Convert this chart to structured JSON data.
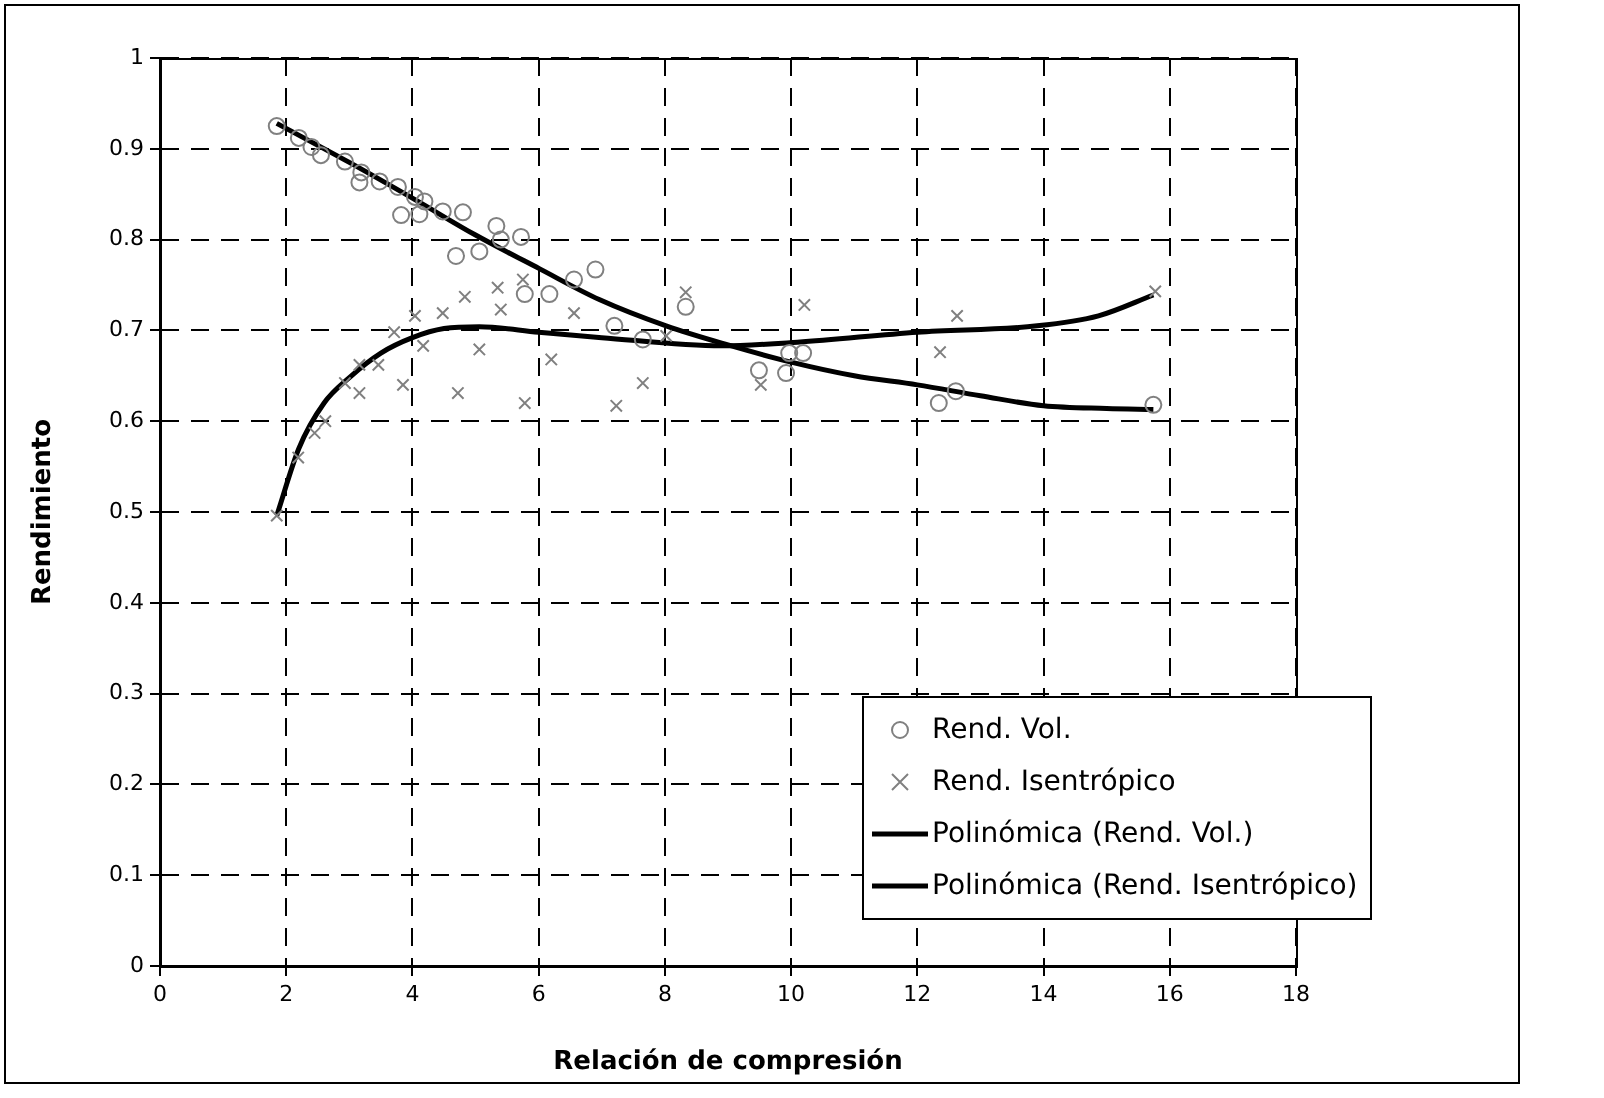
{
  "chart_data": {
    "type": "scatter",
    "xlabel": "Relación de compresión",
    "ylabel": "Rendimiento",
    "xlim": [
      0,
      18
    ],
    "xticks": [
      0,
      2,
      4,
      6,
      8,
      10,
      12,
      14,
      16,
      18
    ],
    "ylim": [
      0,
      1
    ],
    "yticks": [
      0,
      0.1,
      0.2,
      0.3,
      0.4,
      0.5,
      0.6,
      0.7,
      0.8,
      0.9,
      1
    ],
    "grid": true,
    "legend": "bottom right",
    "series": [
      {
        "name": "Rend. Vol.",
        "marker": "circle",
        "color": "#808080",
        "x": [
          1.85,
          2.2,
          2.4,
          2.55,
          2.93,
          3.16,
          3.19,
          3.48,
          3.77,
          4.04,
          4.19,
          3.82,
          4.11,
          4.48,
          4.8,
          4.69,
          5.06,
          5.33,
          5.4,
          5.72,
          5.78,
          6.17,
          6.56,
          6.9,
          7.2,
          7.65,
          8.33,
          9.49,
          9.92,
          9.97,
          10.19,
          12.34,
          12.61,
          15.74
        ],
        "values": [
          0.925,
          0.912,
          0.902,
          0.893,
          0.886,
          0.863,
          0.874,
          0.864,
          0.858,
          0.847,
          0.842,
          0.827,
          0.828,
          0.831,
          0.83,
          0.782,
          0.787,
          0.815,
          0.8,
          0.803,
          0.74,
          0.74,
          0.756,
          0.767,
          0.705,
          0.69,
          0.726,
          0.656,
          0.653,
          0.675,
          0.675,
          0.62,
          0.633,
          0.618
        ]
      },
      {
        "name": "Rend. Isentrópico",
        "marker": "cross",
        "color": "#808080",
        "x": [
          1.85,
          2.19,
          2.45,
          2.62,
          2.93,
          3.16,
          3.16,
          3.46,
          3.71,
          3.85,
          4.04,
          4.17,
          4.48,
          4.83,
          4.72,
          5.06,
          5.35,
          5.4,
          5.75,
          5.78,
          6.2,
          6.56,
          7.23,
          7.65,
          8.02,
          8.33,
          9.52,
          10.21,
          12.36,
          12.63,
          15.77
        ],
        "values": [
          0.496,
          0.56,
          0.587,
          0.6,
          0.642,
          0.662,
          0.631,
          0.662,
          0.698,
          0.64,
          0.716,
          0.683,
          0.719,
          0.737,
          0.631,
          0.679,
          0.747,
          0.723,
          0.756,
          0.62,
          0.668,
          0.719,
          0.617,
          0.642,
          0.694,
          0.742,
          0.64,
          0.728,
          0.676,
          0.716,
          0.743
        ]
      },
      {
        "name": "Polinómica (Rend. Vol.)",
        "type": "line",
        "marker": "none",
        "color": "#000000",
        "x": [
          1.85,
          3,
          4.04,
          5,
          6.01,
          6.96,
          8.02,
          9,
          10,
          11,
          12,
          13,
          14,
          15,
          15.74
        ],
        "values": [
          0.928,
          0.885,
          0.844,
          0.805,
          0.768,
          0.734,
          0.705,
          0.684,
          0.665,
          0.65,
          0.64,
          0.628,
          0.617,
          0.614,
          0.613
        ]
      },
      {
        "name": "Polinómica (Rend. Isentrópico)",
        "type": "line",
        "marker": "none",
        "color": "#000000",
        "x": [
          1.85,
          2.2,
          2.6,
          3,
          3.5,
          4,
          4.5,
          5.06,
          6,
          7,
          8.9,
          10.1,
          12,
          13.9,
          14.87,
          15.74
        ],
        "values": [
          0.496,
          0.57,
          0.62,
          0.648,
          0.675,
          0.692,
          0.702,
          0.704,
          0.698,
          0.692,
          0.683,
          0.687,
          0.698,
          0.705,
          0.716,
          0.739
        ]
      }
    ]
  }
}
